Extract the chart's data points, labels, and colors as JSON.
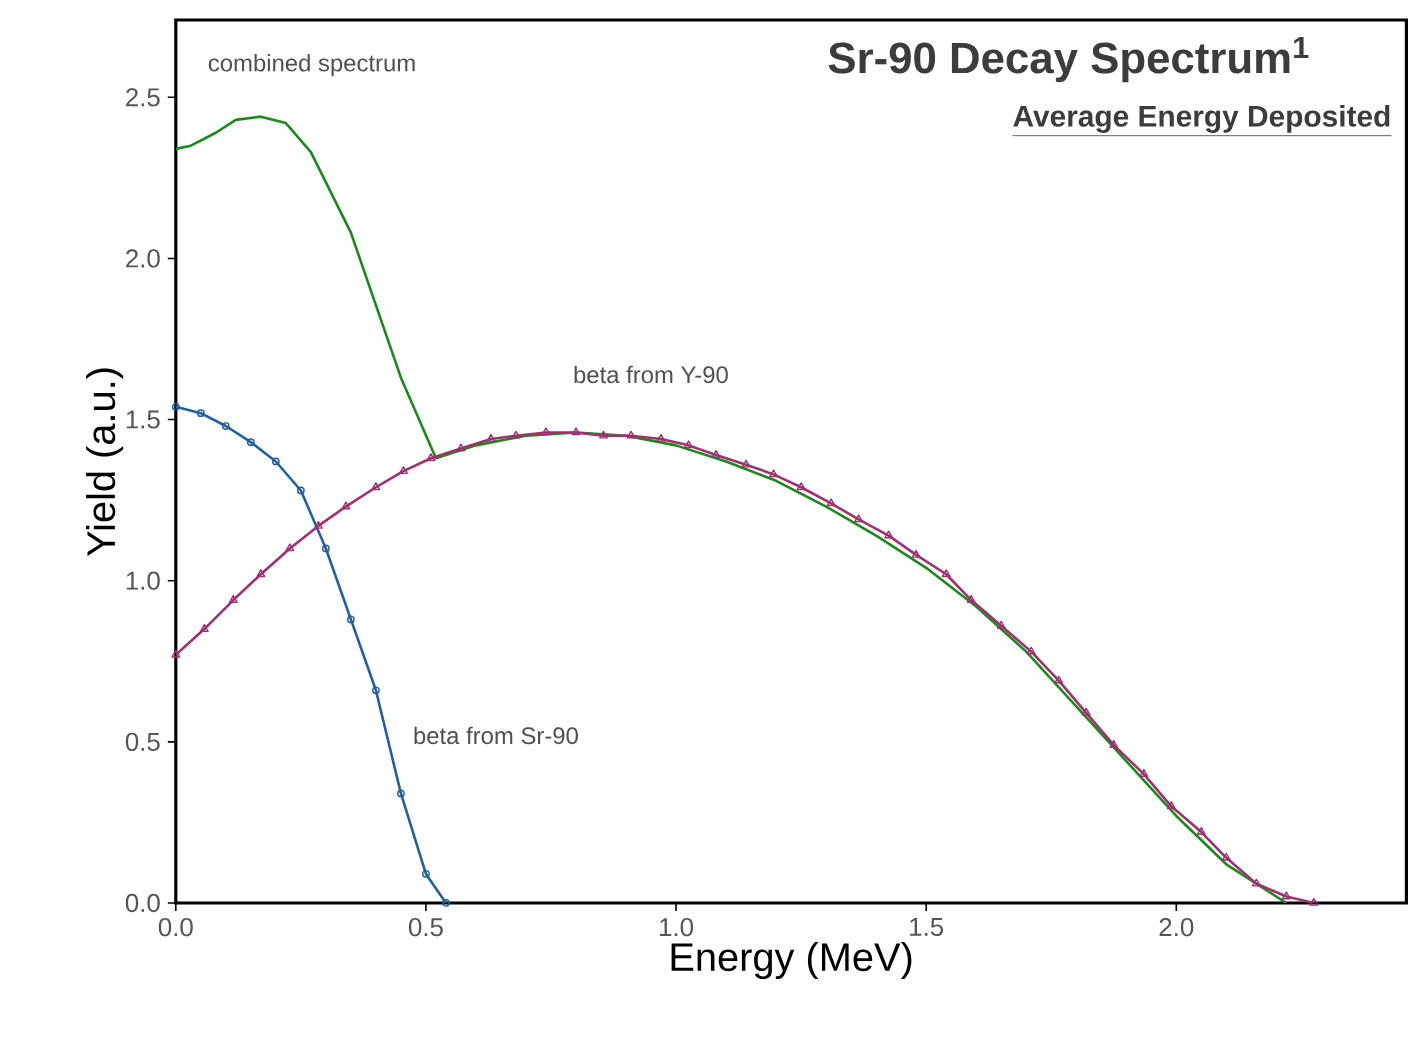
{
  "chart_data": {
    "type": "line",
    "title": "Sr-90 Decay Spectrum$^{1}$",
    "subtitle": "Average Energy Deposited",
    "xlabel": "Energy (MeV)",
    "ylabel": "Yield (a.u.)",
    "xlim": [
      0,
      2.46
    ],
    "ylim": [
      0,
      2.74
    ],
    "xticks": [
      {
        "value": 0,
        "label": "0.0"
      },
      {
        "value": 0.5,
        "label": "0.5"
      },
      {
        "value": 1,
        "label": "1.0"
      },
      {
        "value": 1.5,
        "label": "1.5"
      },
      {
        "value": 2,
        "label": "2.0"
      }
    ],
    "yticks": [
      {
        "value": 0,
        "label": "0.0"
      },
      {
        "value": 0.5,
        "label": "0.5"
      },
      {
        "value": 1,
        "label": "1.0"
      },
      {
        "value": 1.5,
        "label": "1.5"
      },
      {
        "value": 2,
        "label": "2.0"
      },
      {
        "value": 2.5,
        "label": "2.5"
      }
    ],
    "legend": false,
    "series": [
      {
        "name": "combined spectrum",
        "color": "#1a8a1a",
        "marker": "none",
        "x": [
          0,
          0.03,
          0.08,
          0.12,
          0.17,
          0.22,
          0.27,
          0.35,
          0.45,
          0.52,
          0.6,
          0.7,
          0.8,
          0.9,
          1.0,
          1.1,
          1.2,
          1.3,
          1.4,
          1.5,
          1.6,
          1.7,
          1.8,
          1.9,
          2.0,
          2.1,
          2.22
        ],
        "values": [
          2.34,
          2.35,
          2.39,
          2.43,
          2.44,
          2.42,
          2.33,
          2.08,
          1.63,
          1.38,
          1.42,
          1.45,
          1.46,
          1.45,
          1.42,
          1.37,
          1.31,
          1.23,
          1.14,
          1.04,
          0.92,
          0.78,
          0.61,
          0.44,
          0.27,
          0.12,
          0
        ]
      },
      {
        "name": "beta from Y-90",
        "color": "#a03070",
        "marker": "triangle",
        "x": [
          0,
          0.057,
          0.115,
          0.17,
          0.228,
          0.285,
          0.34,
          0.4,
          0.455,
          0.51,
          0.57,
          0.63,
          0.68,
          0.74,
          0.8,
          0.855,
          0.91,
          0.97,
          1.025,
          1.08,
          1.14,
          1.195,
          1.25,
          1.31,
          1.365,
          1.425,
          1.48,
          1.54,
          1.59,
          1.65,
          1.71,
          1.765,
          1.82,
          1.875,
          1.935,
          1.99,
          2.05,
          2.1,
          2.16,
          2.22,
          2.275
        ],
        "values": [
          0.77,
          0.85,
          0.94,
          1.02,
          1.1,
          1.17,
          1.23,
          1.29,
          1.34,
          1.38,
          1.41,
          1.44,
          1.45,
          1.46,
          1.46,
          1.45,
          1.45,
          1.44,
          1.42,
          1.39,
          1.36,
          1.33,
          1.29,
          1.24,
          1.19,
          1.14,
          1.08,
          1.02,
          0.94,
          0.86,
          0.78,
          0.69,
          0.59,
          0.49,
          0.4,
          0.3,
          0.22,
          0.14,
          0.06,
          0.02,
          0
        ]
      },
      {
        "name": "beta from Sr-90",
        "color": "#2060a0",
        "marker": "circle",
        "x": [
          0,
          0.05,
          0.1,
          0.15,
          0.2,
          0.25,
          0.3,
          0.35,
          0.4,
          0.45,
          0.5,
          0.54
        ],
        "values": [
          1.54,
          1.52,
          1.48,
          1.43,
          1.37,
          1.28,
          1.1,
          0.88,
          0.66,
          0.34,
          0.09,
          0
        ]
      }
    ]
  }
}
